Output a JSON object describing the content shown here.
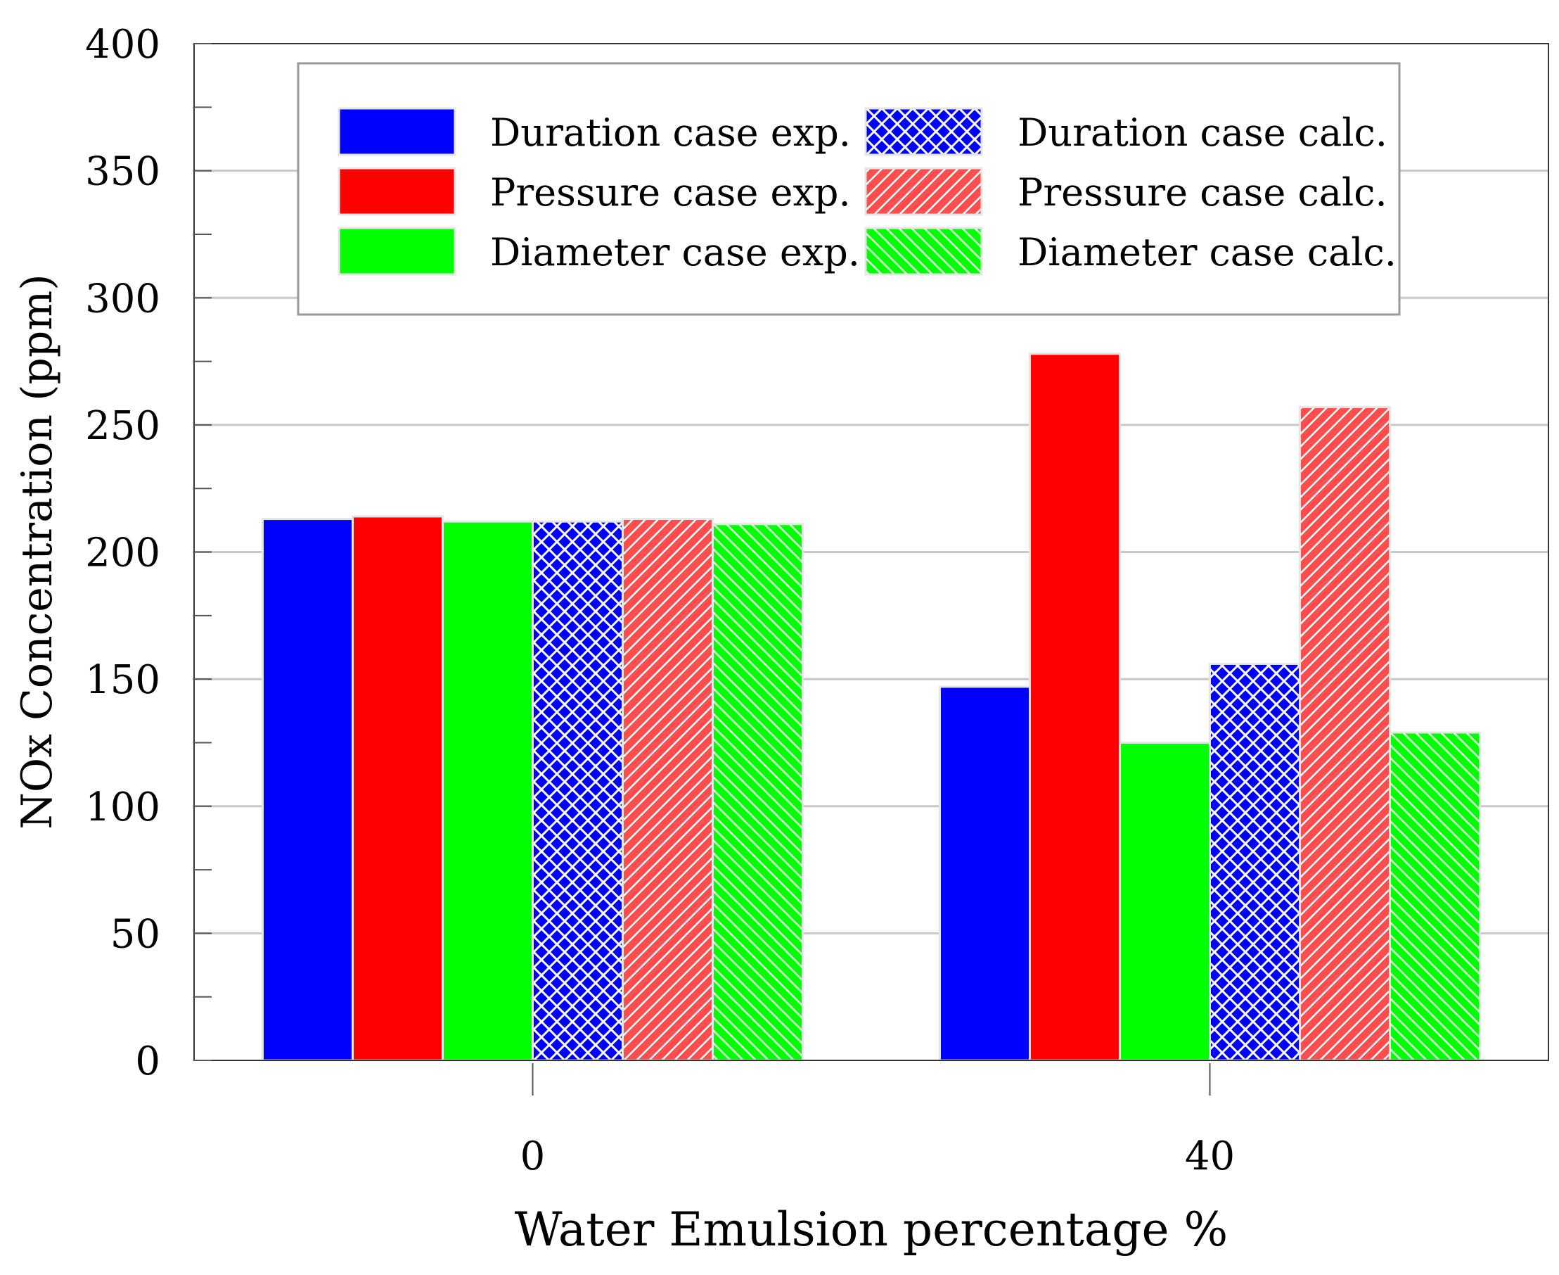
{
  "chart_data": {
    "type": "bar",
    "title": "",
    "xlabel": "Water Emulsion percentage %",
    "ylabel": "NOx Concentration (ppm)",
    "categories": [
      "0",
      "40"
    ],
    "ylim": [
      0,
      400
    ],
    "yticks": [
      0,
      50,
      100,
      150,
      200,
      250,
      300,
      350,
      400
    ],
    "grid": true,
    "legend_position": "top",
    "series": [
      {
        "name": "Duration case exp.",
        "values": [
          213,
          147
        ],
        "color": "#0000ff",
        "pattern": "solid"
      },
      {
        "name": "Pressure case exp.",
        "values": [
          214,
          278
        ],
        "color": "#ff0000",
        "pattern": "solid"
      },
      {
        "name": "Diameter case exp.",
        "values": [
          212,
          125
        ],
        "color": "#00ff00",
        "pattern": "solid"
      },
      {
        "name": "Duration case calc.",
        "values": [
          212,
          156
        ],
        "color": "#0000ff",
        "pattern": "crosshatch"
      },
      {
        "name": "Pressure case calc.",
        "values": [
          213,
          257
        ],
        "color": "#ff0000",
        "pattern": "diagonal-up"
      },
      {
        "name": "Diameter case calc.",
        "values": [
          211,
          129
        ],
        "color": "#00ff00",
        "pattern": "diagonal-down"
      }
    ]
  }
}
